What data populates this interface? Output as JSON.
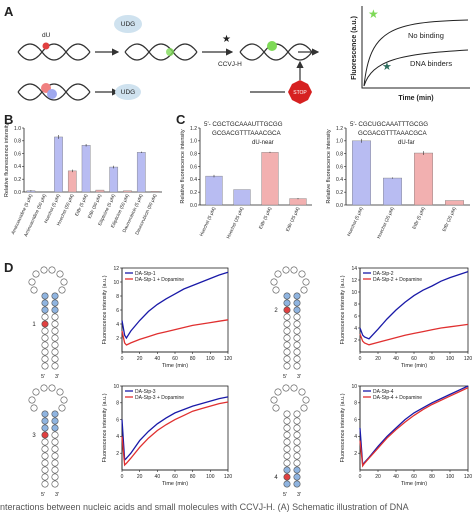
{
  "panel_labels": [
    "A",
    "B",
    "C",
    "D"
  ],
  "panel_a": {
    "du": "dU",
    "udg_top": "UDG",
    "probe": "CCVJ-H",
    "udg_bottom": "UDG",
    "stop": "STOP",
    "ylabel": "Fluorescence (a.u.)",
    "xlabel": "Time (min)",
    "no_binding": "No binding",
    "binders": "DNA binders"
  },
  "hairpins": [
    {
      "number": "1",
      "five": "5'",
      "three": "3'"
    },
    {
      "number": "2",
      "five": "5'",
      "three": "3'"
    },
    {
      "number": "3",
      "five": "5'",
      "three": "3'"
    },
    {
      "number": "4",
      "five": "5'",
      "three": "3'"
    }
  ],
  "caption": "nteractions between nucleic acids and small molecules with CCVJ-H. (A) Schematic illustration of DNA",
  "chart_data": [
    {
      "type": "bar",
      "ylabel": "Relative fluorescence intensity",
      "categories": [
        "Aminoacridine (5 μM)",
        "Aminoacridine (50 μM)",
        "Hoechst (5 μM)",
        "Hoechst (50 μM)",
        "EtBr (5 μM)",
        "EtBr (50 μM)",
        "Ellipticine (5 μM)",
        "Ellipticine (50 μM)",
        "Daunorubicin (5 μM)",
        "Daunorubicin (50 μM)"
      ],
      "values": [
        0.02,
        0.0,
        0.86,
        0.33,
        0.73,
        0.03,
        0.39,
        0.02,
        0.62,
        0.01
      ],
      "errors": [
        0.01,
        0.0,
        0.03,
        0.02,
        0.02,
        0.0,
        0.02,
        0.0,
        0.01,
        0.0
      ],
      "colors": [
        "#b8bcf2",
        "#f2b0b0",
        "#b8bcf2",
        "#f2b0b0",
        "#b8bcf2",
        "#f2b0b0",
        "#b8bcf2",
        "#f2b0b0",
        "#b8bcf2",
        "#f2b0b0"
      ],
      "ylim": [
        0,
        1.0
      ],
      "yticks": [
        {
          "value": 0,
          "label": "0.0"
        },
        {
          "value": 0.2,
          "label": "0.2"
        },
        {
          "value": 0.4,
          "label": "0.4"
        },
        {
          "value": 0.6,
          "label": "0.6"
        },
        {
          "value": 0.8,
          "label": "0.8"
        },
        {
          "value": 1.0,
          "label": "1.0"
        }
      ]
    },
    {
      "type": "bar",
      "ylabel": "Relative fluorescence intensity",
      "annotations": [
        "5'- CGCTGCAAAUTTGCGG",
        "GCGACGTTTAAACGCA",
        "dU-near"
      ],
      "categories": [
        "Hoechst (5 μM)",
        "Hoechst (25 μM)",
        "EtBr (5 μM)",
        "EtBr (25 μM)"
      ],
      "values": [
        0.45,
        0.24,
        0.82,
        0.1
      ],
      "errors": [
        0.02,
        0.0,
        0.01,
        0.01
      ],
      "colors": [
        "#b8bcf2",
        "#b8bcf2",
        "#f2b0b0",
        "#f2b0b0"
      ],
      "ylim": [
        0,
        1.2
      ],
      "yticks": [
        {
          "value": 0,
          "label": "0.0"
        },
        {
          "value": 0.2,
          "label": "0.2"
        },
        {
          "value": 0.4,
          "label": "0.4"
        },
        {
          "value": 0.6,
          "label": "0.6"
        },
        {
          "value": 0.8,
          "label": "0.8"
        },
        {
          "value": 1.0,
          "label": "1.0"
        },
        {
          "value": 1.2,
          "label": "1.2"
        }
      ]
    },
    {
      "type": "bar",
      "ylabel": "Relative fluorescence intensity",
      "annotations": [
        "5'- CGCUGCAAATTTGCGG",
        "GCGACGTTTAAACGCA",
        "dU-far"
      ],
      "categories": [
        "Hoechst (5 μM)",
        "Hoechst (25 μM)",
        "EtBr (5 μM)",
        "EtBr (25 μM)"
      ],
      "values": [
        1.0,
        0.42,
        0.81,
        0.07
      ],
      "errors": [
        0.03,
        0.01,
        0.03,
        0.0
      ],
      "colors": [
        "#b8bcf2",
        "#b8bcf2",
        "#f2b0b0",
        "#f2b0b0"
      ],
      "ylim": [
        0,
        1.2
      ],
      "yticks": [
        {
          "value": 0,
          "label": "0.0"
        },
        {
          "value": 0.2,
          "label": "0.2"
        },
        {
          "value": 0.4,
          "label": "0.4"
        },
        {
          "value": 0.6,
          "label": "0.6"
        },
        {
          "value": 0.8,
          "label": "0.8"
        },
        {
          "value": 1.0,
          "label": "1.0"
        },
        {
          "value": 1.2,
          "label": "1.2"
        }
      ]
    },
    {
      "type": "line",
      "xlabel": "Time (min)",
      "ylabel": "Fluorescence intensity (a.u.)",
      "legend": "upper left",
      "x": [
        0,
        3,
        5,
        10,
        20,
        30,
        40,
        50,
        60,
        70,
        80,
        90,
        100,
        110,
        120
      ],
      "series": [
        {
          "name": "DA-Stp-1",
          "color": "#1a1aa8",
          "values": [
            4.5,
            2.4,
            2.0,
            3.0,
            4.5,
            5.8,
            6.8,
            7.6,
            8.3,
            9.0,
            9.5,
            10.0,
            10.5,
            11.0,
            11.4
          ]
        },
        {
          "name": "DA-Stp-1 + Dopamine",
          "color": "#e03030",
          "values": [
            3.0,
            1.3,
            1.0,
            1.3,
            1.8,
            2.2,
            2.6,
            2.9,
            3.2,
            3.5,
            3.8,
            4.0,
            4.2,
            4.4,
            4.6
          ]
        }
      ],
      "xlim": [
        0,
        120
      ],
      "xticks": [
        0,
        20,
        40,
        60,
        80,
        100,
        120
      ],
      "ylim": [
        0,
        12
      ],
      "yticks": [
        2,
        4,
        6,
        8,
        10,
        12
      ]
    },
    {
      "type": "line",
      "xlabel": "Time (min)",
      "ylabel": "Fluorescence intensity (a.u.)",
      "legend": "upper left",
      "x": [
        0,
        3,
        5,
        10,
        20,
        30,
        40,
        50,
        60,
        70,
        80,
        90,
        100,
        110,
        120
      ],
      "series": [
        {
          "name": "DA-Stp-2",
          "color": "#1a1aa8",
          "values": [
            4.0,
            2.8,
            2.5,
            2.2,
            3.8,
            5.5,
            7.0,
            8.3,
            9.4,
            10.3,
            11.0,
            11.8,
            12.4,
            12.9,
            13.4
          ]
        },
        {
          "name": "DA-Stp-2 + Dopamine",
          "color": "#e03030",
          "values": [
            3.0,
            1.8,
            1.5,
            1.2,
            1.6,
            2.0,
            2.4,
            2.8,
            3.1,
            3.4,
            3.7,
            4.0,
            4.2,
            4.4,
            4.6
          ]
        }
      ],
      "xlim": [
        0,
        120
      ],
      "xticks": [
        0,
        20,
        40,
        60,
        80,
        100,
        120
      ],
      "ylim": [
        0,
        14
      ],
      "yticks": [
        2,
        4,
        6,
        8,
        10,
        12,
        14
      ]
    },
    {
      "type": "line",
      "xlabel": "Time (min)",
      "ylabel": "Fluorescence intensity (a.u.)",
      "legend": "upper left",
      "x": [
        0,
        3,
        5,
        10,
        20,
        30,
        40,
        50,
        60,
        70,
        80,
        90,
        100,
        110,
        120
      ],
      "series": [
        {
          "name": "DA-Stp-3",
          "color": "#1a1aa8",
          "values": [
            6.0,
            1.2,
            1.4,
            2.0,
            3.5,
            4.6,
            5.5,
            6.2,
            6.8,
            7.2,
            7.6,
            7.9,
            8.2,
            8.5,
            8.7
          ]
        },
        {
          "name": "DA-Stp-3 + Dopamine",
          "color": "#e03030",
          "values": [
            4.0,
            0.6,
            0.8,
            1.4,
            2.7,
            3.8,
            4.7,
            5.4,
            6.0,
            6.5,
            7.0,
            7.3,
            7.6,
            7.9,
            8.1
          ]
        }
      ],
      "xlim": [
        0,
        120
      ],
      "xticks": [
        0,
        20,
        40,
        60,
        80,
        100,
        120
      ],
      "ylim": [
        0,
        10
      ],
      "yticks": [
        2,
        4,
        6,
        8,
        10
      ]
    },
    {
      "type": "line",
      "xlabel": "Time (min)",
      "ylabel": "Fluorescence intensity (a.u.)",
      "legend": "upper left",
      "x": [
        0,
        3,
        5,
        10,
        20,
        30,
        40,
        50,
        60,
        70,
        80,
        90,
        100,
        110,
        120
      ],
      "series": [
        {
          "name": "DA-Stp-4",
          "color": "#1a1aa8",
          "values": [
            5.0,
            0.6,
            0.9,
            1.5,
            2.8,
            4.0,
            5.0,
            6.0,
            6.8,
            7.4,
            8.0,
            8.5,
            9.0,
            9.5,
            10.0
          ]
        },
        {
          "name": "DA-Stp-4 + Dopamine",
          "color": "#e03030",
          "values": [
            3.5,
            0.5,
            0.8,
            1.4,
            2.6,
            3.8,
            4.8,
            5.7,
            6.5,
            7.2,
            7.8,
            8.3,
            8.8,
            9.3,
            9.8
          ]
        }
      ],
      "xlim": [
        0,
        120
      ],
      "xticks": [
        0,
        20,
        40,
        60,
        80,
        100,
        120
      ],
      "ylim": [
        0,
        10
      ],
      "yticks": [
        2,
        4,
        6,
        8,
        10
      ]
    }
  ]
}
